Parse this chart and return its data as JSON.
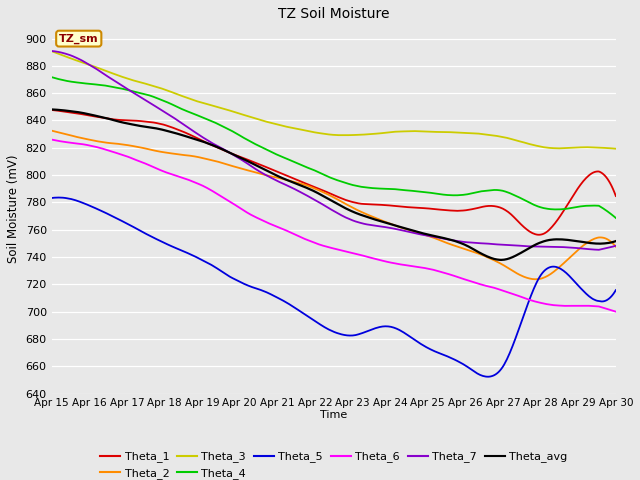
{
  "title": "TZ Soil Moisture",
  "ylabel": "Soil Moisture (mV)",
  "xlabel": "Time",
  "ylim": [
    640,
    910
  ],
  "yticks": [
    640,
    660,
    680,
    700,
    720,
    740,
    760,
    780,
    800,
    820,
    840,
    860,
    880,
    900
  ],
  "bg_color": "#e8e8e8",
  "grid_color": "#ffffff",
  "legend_box_label": "TZ_sm",
  "legend_box_bg": "#ffffcc",
  "legend_box_border": "#cc8800",
  "date_labels": [
    "Apr 15",
    "Apr 16",
    "Apr 17",
    "Apr 18",
    "Apr 19",
    "Apr 20",
    "Apr 21",
    "Apr 22",
    "Apr 23",
    "Apr 24",
    "Apr 25",
    "Apr 26",
    "Apr 27",
    "Apr 28",
    "Apr 29",
    "Apr 30"
  ],
  "colors": {
    "Theta_1": "#dd0000",
    "Theta_2": "#ff8c00",
    "Theta_3": "#cccc00",
    "Theta_4": "#00cc00",
    "Theta_5": "#0000dd",
    "Theta_6": "#ff00ff",
    "Theta_7": "#8800cc",
    "Theta_avg": "#000000"
  }
}
